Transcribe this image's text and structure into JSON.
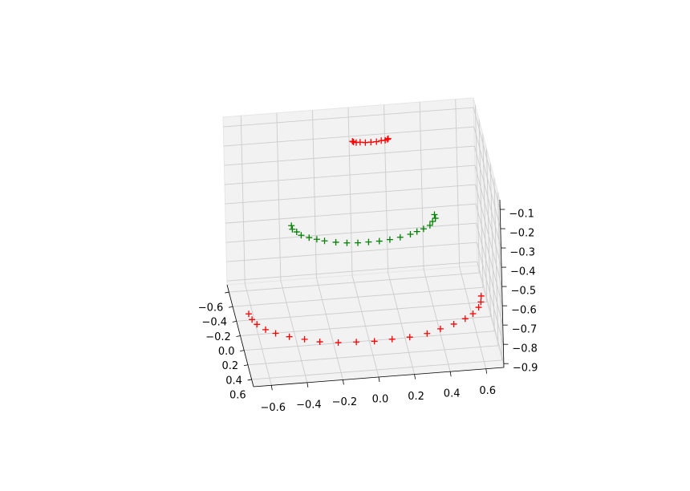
{
  "chart_data": {
    "type": "scatter3d",
    "marker": "+",
    "grid": true,
    "xlim": [
      -0.7,
      0.7
    ],
    "ylim": [
      -0.7,
      0.7
    ],
    "zlim": [
      -0.92,
      -0.05
    ],
    "xticks": [
      {
        "value": -0.6,
        "label": "−0.6"
      },
      {
        "value": -0.4,
        "label": "−0.4"
      },
      {
        "value": -0.2,
        "label": "−0.2"
      },
      {
        "value": 0,
        "label": "0.0"
      },
      0.2,
      0.4,
      0.6
    ],
    "yticks": [
      {
        "value": -0.6,
        "label": "−0.6"
      },
      {
        "value": -0.4,
        "label": "−0.4"
      },
      {
        "value": -0.2,
        "label": "−0.2"
      },
      {
        "value": 0,
        "label": "0.0"
      },
      0.2,
      0.4,
      0.6
    ],
    "zticks": [
      {
        "value": -0.1,
        "label": "−0.1"
      },
      {
        "value": -0.2,
        "label": "−0.2"
      },
      {
        "value": -0.3,
        "label": "−0.3"
      },
      {
        "value": -0.4,
        "label": "−0.4"
      },
      {
        "value": -0.5,
        "label": "−0.5"
      },
      {
        "value": -0.6,
        "label": "−0.6"
      },
      {
        "value": -0.7,
        "label": "−0.7"
      },
      {
        "value": -0.8,
        "label": "−0.8"
      },
      {
        "value": -0.9,
        "label": "−0.9"
      }
    ],
    "series": [
      {
        "color": "#ff0000",
        "x": [
          0.65,
          0.64,
          0.62,
          0.58,
          0.53,
          0.46,
          0.38,
          0.3,
          0.2,
          0.1,
          0,
          -0.1,
          -0.2,
          -0.3,
          -0.38,
          -0.46,
          -0.53,
          -0.58,
          -0.62,
          -0.64,
          -0.65
        ],
        "y": [
          0,
          0.08,
          0.15,
          0.23,
          0.29,
          0.35,
          0.4,
          0.45,
          0.48,
          0.49,
          0.5,
          0.49,
          0.48,
          0.45,
          0.4,
          0.35,
          0.29,
          0.23,
          0.15,
          0.08,
          0
        ],
        "z": [
          -0.81,
          -0.81,
          -0.81,
          -0.81,
          -0.81,
          -0.81,
          -0.81,
          -0.81,
          -0.81,
          -0.81,
          -0.81,
          -0.81,
          -0.81,
          -0.81,
          -0.81,
          -0.81,
          -0.81,
          -0.81,
          -0.81,
          -0.81,
          -0.81
        ]
      },
      {
        "color": "#008000",
        "x": [
          0.4,
          0.4,
          0.38,
          0.36,
          0.32,
          0.28,
          0.24,
          0.18,
          0.12,
          0.06,
          0,
          -0.06,
          -0.12,
          -0.18,
          -0.24,
          -0.28,
          -0.32,
          -0.36,
          -0.38,
          -0.4,
          -0.4
        ],
        "y": [
          0,
          0.05,
          0.09,
          0.14,
          0.18,
          0.21,
          0.24,
          0.27,
          0.29,
          0.3,
          0.3,
          0.3,
          0.29,
          0.27,
          0.24,
          0.21,
          0.18,
          0.14,
          0.09,
          0.05,
          0
        ],
        "z": [
          -0.37,
          -0.37,
          -0.37,
          -0.37,
          -0.37,
          -0.37,
          -0.37,
          -0.37,
          -0.37,
          -0.37,
          -0.37,
          -0.37,
          -0.37,
          -0.37,
          -0.37,
          -0.37,
          -0.37,
          -0.37,
          -0.37,
          -0.37,
          -0.37
        ]
      },
      {
        "color": "#ff0000",
        "x": [
          0.2,
          0.195,
          0.181,
          0.159,
          0.131,
          0.1,
          0.069,
          0.041,
          0.019,
          0.005,
          0
        ],
        "y": [
          -0.5,
          -0.49,
          -0.48,
          -0.48,
          -0.47,
          -0.47,
          -0.47,
          -0.48,
          -0.48,
          -0.49,
          -0.5
        ],
        "z": [
          -0.15,
          -0.15,
          -0.15,
          -0.15,
          -0.15,
          -0.15,
          -0.15,
          -0.15,
          -0.15,
          -0.15,
          -0.15
        ]
      }
    ]
  }
}
